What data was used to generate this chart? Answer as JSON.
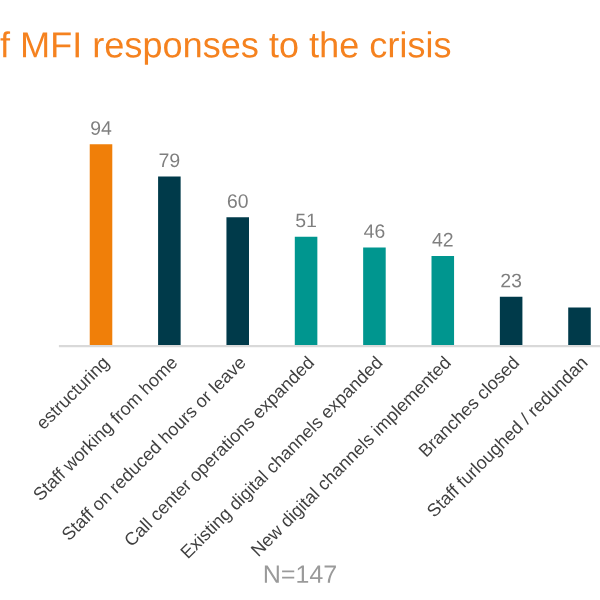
{
  "chart_data": {
    "type": "bar",
    "title": "f MFI responses to the crisis",
    "categories": [
      "estructuring",
      "Staff working from home",
      "Staff on reduced hours or leave",
      "Call center operations expanded",
      "Existing digital channels expanded",
      "New digital channels implemented",
      "Branches closed",
      "Staff furloughed / redundan"
    ],
    "values": [
      94,
      79,
      60,
      51,
      46,
      42,
      23,
      18
    ],
    "colors": [
      "#f07f09",
      "#003a4a",
      "#003a4a",
      "#00968f",
      "#00968f",
      "#00968f",
      "#003a4a",
      "#003a4a"
    ],
    "value_labels": [
      "94",
      "79",
      "60",
      "51",
      "46",
      "42",
      "23",
      null
    ],
    "annotations": [
      "N=147"
    ],
    "grid": false,
    "legend": false
  }
}
